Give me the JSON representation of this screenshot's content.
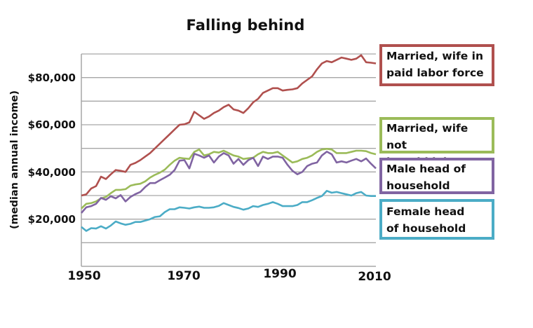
{
  "chart_data": {
    "type": "line",
    "title": "Falling behind",
    "xlabel": "",
    "ylabel": "(median annual income)",
    "xlim": [
      1950,
      2010
    ],
    "ylim": [
      0,
      90000
    ],
    "grid": true,
    "gridline_step": 10000,
    "x_ticks": [
      "1950",
      "1970",
      "1990",
      "2010"
    ],
    "y_ticks": [
      {
        "value": 80000,
        "label": "$80,000"
      },
      {
        "value": 60000,
        "label": "$60,000"
      },
      {
        "value": 40000,
        "label": "$40,000"
      },
      {
        "value": 20000,
        "label": "$20,000"
      }
    ],
    "legend_position": "right",
    "x": [
      1950,
      1951,
      1952,
      1953,
      1954,
      1955,
      1956,
      1957,
      1958,
      1959,
      1960,
      1961,
      1962,
      1963,
      1964,
      1965,
      1966,
      1967,
      1968,
      1969,
      1970,
      1971,
      1972,
      1973,
      1974,
      1975,
      1976,
      1977,
      1978,
      1979,
      1980,
      1981,
      1982,
      1983,
      1984,
      1985,
      1986,
      1987,
      1988,
      1989,
      1990,
      1991,
      1992,
      1993,
      1994,
      1995,
      1996,
      1997,
      1998,
      1999,
      2000,
      2001,
      2002,
      2003,
      2004,
      2005,
      2006,
      2007,
      2008,
      2009,
      2010
    ],
    "series": [
      {
        "name": "Married, wife in paid labor force",
        "color": "#B0504E",
        "values": [
          30000,
          30500,
          33000,
          34000,
          38000,
          37000,
          39000,
          40800,
          40500,
          40000,
          43000,
          43800,
          45000,
          46500,
          48000,
          50000,
          52000,
          54000,
          56000,
          58000,
          60000,
          60200,
          61000,
          65500,
          64000,
          62500,
          63500,
          65000,
          66000,
          67500,
          68500,
          66500,
          66000,
          65000,
          67000,
          69500,
          71000,
          73500,
          74500,
          75500,
          75500,
          74500,
          74800,
          75000,
          75500,
          77500,
          79000,
          80500,
          83500,
          86000,
          87000,
          86500,
          87500,
          88500,
          88000,
          87500,
          88000,
          89500,
          86500,
          86300,
          86000
        ]
      },
      {
        "name": "Married, wife not in paid labor force",
        "color": "#9BBB59",
        "values": [
          24500,
          26500,
          26800,
          27500,
          28800,
          29400,
          31000,
          32400,
          32400,
          32700,
          34200,
          34700,
          35000,
          36000,
          37600,
          38800,
          39700,
          41000,
          43000,
          44800,
          46000,
          45700,
          45500,
          48500,
          49500,
          47000,
          47500,
          48500,
          48200,
          49000,
          48000,
          47000,
          46500,
          45500,
          45800,
          46000,
          47500,
          48500,
          48000,
          48000,
          48500,
          47000,
          45500,
          44000,
          44500,
          45500,
          46000,
          47000,
          48500,
          49500,
          49800,
          49500,
          48000,
          48000,
          48000,
          48500,
          49000,
          49000,
          48800,
          48000,
          47500
        ]
      },
      {
        "name": "Male head of household",
        "color": "#8064A2",
        "values": [
          22600,
          25000,
          25500,
          26500,
          29000,
          28200,
          29700,
          28800,
          30200,
          27500,
          29400,
          30600,
          31500,
          33600,
          35300,
          35300,
          36500,
          37600,
          38800,
          40800,
          44800,
          45000,
          41500,
          47700,
          47000,
          46000,
          47000,
          44000,
          46500,
          48000,
          47000,
          43500,
          45500,
          43000,
          45000,
          46000,
          42500,
          46500,
          45500,
          46500,
          46500,
          46000,
          43000,
          40500,
          39000,
          40000,
          42500,
          43500,
          44000,
          47000,
          48600,
          47500,
          44000,
          44500,
          44000,
          44800,
          45500,
          44500,
          45700,
          43500,
          41500
        ]
      },
      {
        "name": "Female head of household",
        "color": "#4BACC6",
        "values": [
          16700,
          15000,
          16200,
          16000,
          17000,
          16000,
          17300,
          19000,
          18200,
          17600,
          18000,
          18800,
          18800,
          19400,
          20000,
          20900,
          21200,
          23000,
          24200,
          24200,
          25000,
          24800,
          24500,
          25000,
          25300,
          24800,
          24800,
          25000,
          25600,
          26800,
          26000,
          25200,
          24700,
          24000,
          24500,
          25500,
          25200,
          26000,
          26500,
          27200,
          26500,
          25500,
          25500,
          25500,
          26000,
          27200,
          27200,
          28000,
          29000,
          29800,
          32000,
          31200,
          31500,
          31000,
          30500,
          30000,
          31000,
          31500,
          30000,
          29800,
          29800
        ]
      }
    ]
  },
  "legend": {
    "items": [
      {
        "label": "Married, wife in paid labor force",
        "line1": "Married, wife in",
        "line2": "paid labor force",
        "color": "#B0504E"
      },
      {
        "label": "Married, wife not in paid labor force",
        "line1": "Married, wife not",
        "line2": "in paid labor force",
        "color": "#9BBB59"
      },
      {
        "label": "Male head of household",
        "line1": "Male head of",
        "line2": "household",
        "color": "#8064A2"
      },
      {
        "label": "Female head of household",
        "line1": "Female head",
        "line2": "of household",
        "color": "#4BACC6"
      }
    ]
  }
}
